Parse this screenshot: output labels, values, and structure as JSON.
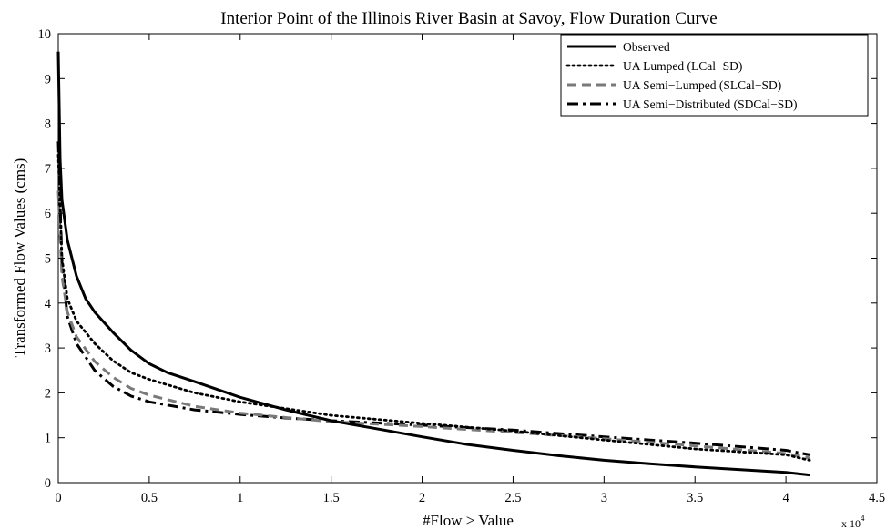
{
  "chart_data": {
    "type": "line",
    "title": "Interior Point of the Illinois River Basin at Savoy, Flow Duration Curve",
    "xlabel": "#Flow > Value",
    "ylabel": "Transformed Flow Values (cms)",
    "x_multiplier_label": "x 10",
    "x_multiplier_exponent": "4",
    "xlim": [
      0,
      4.5
    ],
    "ylim": [
      0,
      10
    ],
    "xticks": [
      "0",
      "0.5",
      "1",
      "1.5",
      "2",
      "2.5",
      "3",
      "3.5",
      "4",
      "4.5"
    ],
    "yticks": [
      "0",
      "1",
      "2",
      "3",
      "4",
      "5",
      "6",
      "7",
      "8",
      "9",
      "10"
    ],
    "grid": false,
    "legend_position": "top-right",
    "x_units_note": "x values in units of 10^4",
    "series": [
      {
        "name": "Observed",
        "color": "#000000",
        "style": "solid",
        "points": [
          [
            0,
            9.6
          ],
          [
            0.01,
            7.2
          ],
          [
            0.02,
            6.3
          ],
          [
            0.05,
            5.4
          ],
          [
            0.1,
            4.6
          ],
          [
            0.15,
            4.1
          ],
          [
            0.2,
            3.8
          ],
          [
            0.3,
            3.35
          ],
          [
            0.4,
            2.95
          ],
          [
            0.5,
            2.65
          ],
          [
            0.6,
            2.45
          ],
          [
            0.75,
            2.25
          ],
          [
            1.0,
            1.9
          ],
          [
            1.25,
            1.62
          ],
          [
            1.5,
            1.38
          ],
          [
            1.75,
            1.2
          ],
          [
            2.0,
            1.02
          ],
          [
            2.25,
            0.85
          ],
          [
            2.5,
            0.72
          ],
          [
            2.75,
            0.6
          ],
          [
            3.0,
            0.5
          ],
          [
            3.25,
            0.42
          ],
          [
            3.5,
            0.35
          ],
          [
            3.75,
            0.29
          ],
          [
            4.0,
            0.23
          ],
          [
            4.13,
            0.17
          ]
        ]
      },
      {
        "name": "UA Lumped (LCal−SD)",
        "color": "#000000",
        "style": "dotted",
        "points": [
          [
            0,
            7.3
          ],
          [
            0.02,
            5.0
          ],
          [
            0.05,
            4.1
          ],
          [
            0.1,
            3.6
          ],
          [
            0.2,
            3.1
          ],
          [
            0.3,
            2.72
          ],
          [
            0.4,
            2.45
          ],
          [
            0.5,
            2.3
          ],
          [
            0.75,
            2.0
          ],
          [
            1.0,
            1.8
          ],
          [
            1.25,
            1.65
          ],
          [
            1.5,
            1.5
          ],
          [
            2.0,
            1.32
          ],
          [
            2.5,
            1.15
          ],
          [
            3.0,
            0.95
          ],
          [
            3.5,
            0.75
          ],
          [
            4.0,
            0.62
          ],
          [
            4.13,
            0.5
          ]
        ]
      },
      {
        "name": "UA Semi−Lumped (SLCal−SD)",
        "color": "#7a7a7a",
        "style": "dashed",
        "points": [
          [
            0,
            6.5
          ],
          [
            0.02,
            4.6
          ],
          [
            0.05,
            3.8
          ],
          [
            0.1,
            3.25
          ],
          [
            0.2,
            2.7
          ],
          [
            0.3,
            2.35
          ],
          [
            0.4,
            2.1
          ],
          [
            0.5,
            1.95
          ],
          [
            0.75,
            1.7
          ],
          [
            1.0,
            1.55
          ],
          [
            1.25,
            1.45
          ],
          [
            1.5,
            1.36
          ],
          [
            2.0,
            1.25
          ],
          [
            2.5,
            1.12
          ],
          [
            3.0,
            0.98
          ],
          [
            3.5,
            0.82
          ],
          [
            4.0,
            0.65
          ],
          [
            4.13,
            0.55
          ]
        ]
      },
      {
        "name": "UA Semi−Distributed (SDCal−SD)",
        "color": "#000000",
        "style": "dashdot",
        "points": [
          [
            0,
            7.6
          ],
          [
            0.02,
            4.9
          ],
          [
            0.05,
            3.7
          ],
          [
            0.1,
            3.1
          ],
          [
            0.2,
            2.5
          ],
          [
            0.3,
            2.15
          ],
          [
            0.4,
            1.93
          ],
          [
            0.5,
            1.8
          ],
          [
            0.75,
            1.62
          ],
          [
            1.0,
            1.52
          ],
          [
            1.25,
            1.44
          ],
          [
            1.5,
            1.38
          ],
          [
            2.0,
            1.28
          ],
          [
            2.5,
            1.17
          ],
          [
            3.0,
            1.02
          ],
          [
            3.5,
            0.88
          ],
          [
            4.0,
            0.72
          ],
          [
            4.13,
            0.62
          ]
        ]
      }
    ]
  },
  "colors": {
    "background": "#ffffff",
    "axis": "#000000",
    "gray_series": "#7a7a7a",
    "light_gray_series": "#bdbdbd"
  }
}
